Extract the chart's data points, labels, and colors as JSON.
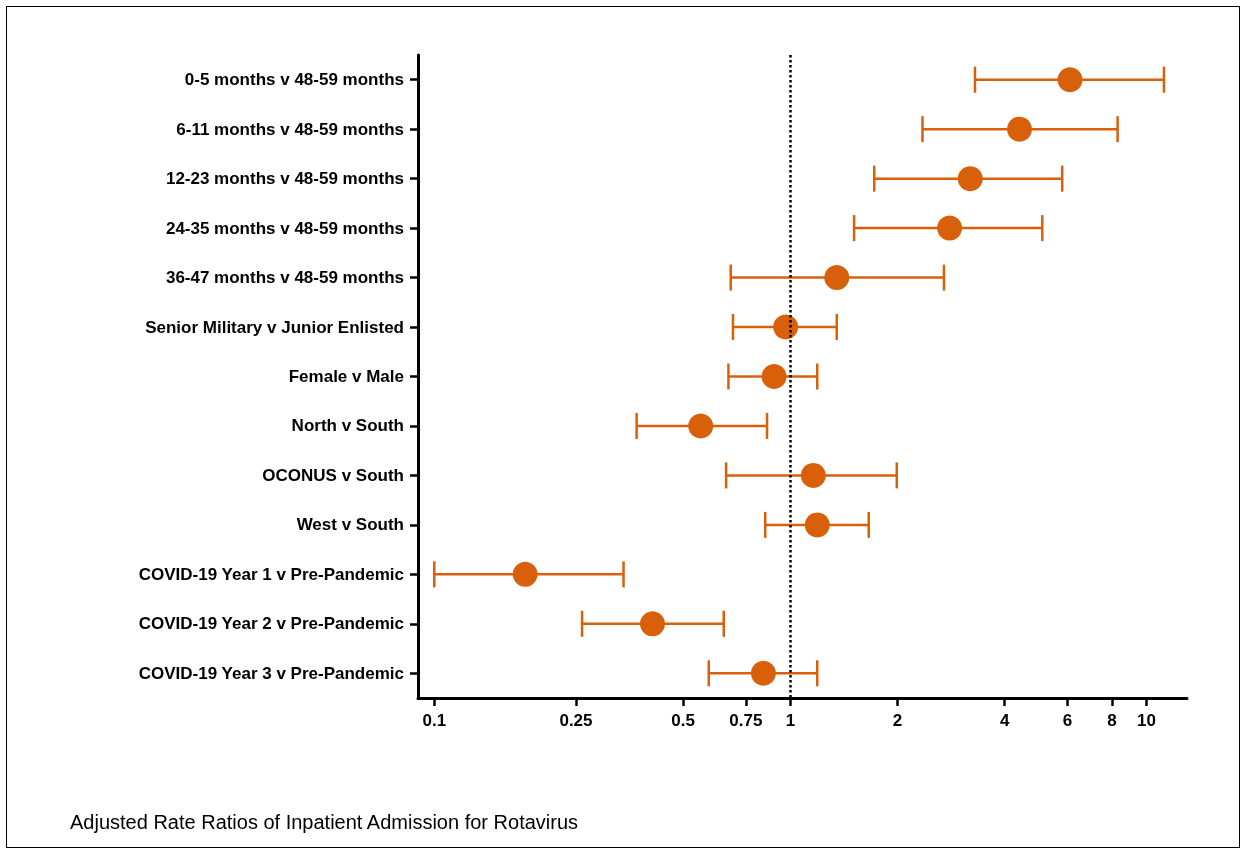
{
  "chart_data": {
    "type": "scatter",
    "orientation": "horizontal",
    "annotations": [
      "Adjusted Rate Ratios of Inpatient Admission for Rotavirus"
    ],
    "categories": [
      "0-5 months v 48-59 months",
      "6-11 months v 48-59 months",
      "12-23 months v 48-59 months",
      "24-35 months v 48-59 months",
      "36-47 months v 48-59 months",
      "Senior Military v Junior Enlisted",
      "Female v Male",
      "North v South",
      "OCONUS v South",
      "West v South",
      "COVID-19 Year 1 v Pre-Pandemic",
      "COVID-19 Year 2 v Pre-Pandemic",
      "COVID-19 Year 3 v Pre-Pandemic"
    ],
    "series": [
      {
        "color": "#d9600b",
        "values": [
          6.1,
          4.4,
          3.2,
          2.8,
          1.35,
          0.97,
          0.9,
          0.56,
          1.16,
          1.19,
          0.18,
          0.41,
          0.84
        ],
        "errors": [
          [
            3.3,
            11.2
          ],
          [
            2.35,
            8.3
          ],
          [
            1.72,
            5.8
          ],
          [
            1.51,
            5.1
          ],
          [
            0.68,
            2.7
          ],
          [
            0.69,
            1.35
          ],
          [
            0.67,
            1.19
          ],
          [
            0.37,
            0.86
          ],
          [
            0.66,
            1.99
          ],
          [
            0.85,
            1.66
          ],
          [
            0.1,
            0.34
          ],
          [
            0.26,
            0.65
          ],
          [
            0.59,
            1.19
          ]
        ]
      }
    ],
    "log": "x",
    "xlim": [
      0.09,
      13
    ],
    "xticks": [
      0.1,
      0.25,
      0.5,
      0.75,
      1,
      2,
      4,
      6,
      8,
      10
    ],
    "ref_lines": [
      {
        "axis": "x",
        "value": 1,
        "color": "#000000",
        "line_style": "dotted"
      }
    ],
    "marker": "circle",
    "grid": false
  }
}
